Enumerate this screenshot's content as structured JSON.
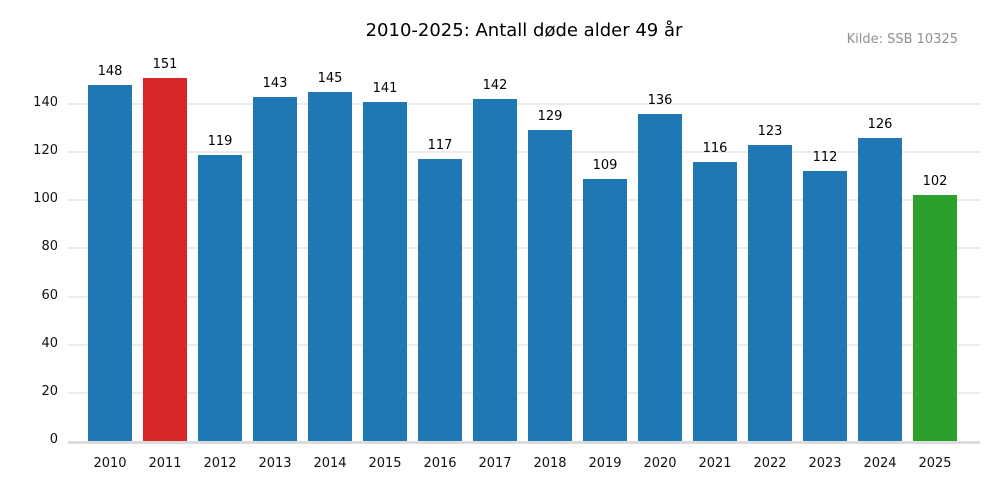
{
  "source": {
    "text": "Kilde: SSB 10325"
  },
  "colors": {
    "bar_default": "#1f77b4",
    "bar_highlight_2011": "#d62728",
    "bar_highlight_2025": "#2ca02c",
    "grid": "#ececec",
    "baseline": "#dcdcdc",
    "title_text": "#000000",
    "tick_text": "#111111",
    "source_text": "#909090"
  },
  "chart_data": {
    "type": "bar",
    "title": "2010-2025: Antall døde alder 49 år",
    "xlabel": "",
    "ylabel": "",
    "categories": [
      "2010",
      "2011",
      "2012",
      "2013",
      "2014",
      "2015",
      "2016",
      "2017",
      "2018",
      "2019",
      "2020",
      "2021",
      "2022",
      "2023",
      "2024",
      "2025"
    ],
    "values": [
      148,
      151,
      119,
      143,
      145,
      141,
      117,
      142,
      129,
      109,
      136,
      116,
      123,
      112,
      126,
      102
    ],
    "bar_colors": [
      "#1f77b4",
      "#d62728",
      "#1f77b4",
      "#1f77b4",
      "#1f77b4",
      "#1f77b4",
      "#1f77b4",
      "#1f77b4",
      "#1f77b4",
      "#1f77b4",
      "#1f77b4",
      "#1f77b4",
      "#1f77b4",
      "#1f77b4",
      "#1f77b4",
      "#2ca02c"
    ],
    "value_labels_shown": true,
    "yticks": [
      0,
      20,
      40,
      60,
      80,
      100,
      120,
      140
    ],
    "ylim": [
      0,
      160
    ],
    "grid": true,
    "legend_position": "none"
  }
}
